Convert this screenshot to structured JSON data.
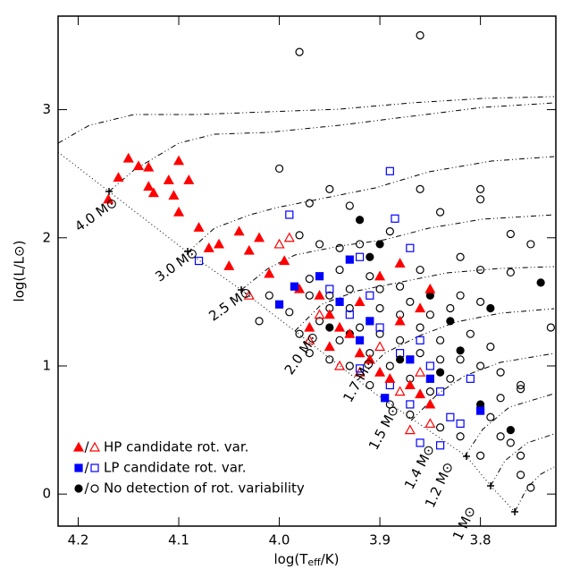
{
  "chart_data": {
    "type": "scatter",
    "xlabel": {
      "prefix": "log(T",
      "sub": "eff",
      "suffix": "/K)"
    },
    "ylabel": "log(L/L⊙)",
    "xlim": [
      4.22,
      3.725
    ],
    "ylim": [
      -0.25,
      3.73
    ],
    "xticks": [
      4.2,
      4.1,
      {
        "value": 4,
        "label": "4.0"
      },
      3.9,
      3.8
    ],
    "yticks": [
      0,
      1,
      2,
      3
    ],
    "legend_position": "lower left",
    "legend_separator": "/",
    "mass_labels": [
      "4.0 M⊙",
      "3.0 M⊙",
      "2.5 M⊙",
      "2.0 M⊙",
      "1.7 M⊙",
      "1.5 M⊙",
      "1.4 M⊙",
      "1.2 M⊙",
      "1 M⊙"
    ],
    "series": [
      {
        "name": "HP candidate rot. var.",
        "color": "#ff0000",
        "marker": "triangle",
        "filled": {
          "x": [
            4.17,
            4.16,
            4.15,
            4.14,
            4.13,
            4.125,
            4.13,
            4.11,
            4.105,
            4.1,
            4.09,
            4.1,
            4.08,
            4.07,
            4.06,
            4.04,
            4.05,
            4.03,
            4.02,
            4.01,
            3.995,
            3.98,
            3.96,
            3.95,
            3.94,
            3.93,
            3.92,
            3.91,
            3.9,
            3.89,
            3.88,
            3.87,
            3.86,
            3.85,
            3.92,
            3.9,
            3.88,
            3.85,
            3.95,
            3.97,
            3.86
          ],
          "y": [
            2.3,
            2.47,
            2.62,
            2.56,
            2.4,
            2.35,
            2.55,
            2.45,
            2.33,
            2.6,
            2.45,
            2.2,
            2.08,
            1.92,
            1.95,
            2.05,
            1.78,
            1.9,
            2.0,
            1.72,
            1.82,
            1.6,
            1.55,
            1.4,
            1.3,
            1.25,
            1.1,
            1.05,
            0.95,
            0.9,
            1.35,
            0.85,
            0.78,
            0.7,
            1.5,
            1.7,
            1.8,
            1.6,
            1.15,
            1.3,
            1.45
          ]
        },
        "open": {
          "x": [
            4.03,
            4.0,
            3.99,
            3.97,
            3.94,
            3.92,
            3.9,
            3.88,
            3.86,
            3.85,
            3.87,
            3.96
          ],
          "y": [
            1.55,
            1.95,
            2.0,
            1.2,
            1.0,
            0.95,
            1.15,
            0.8,
            0.95,
            0.55,
            0.5,
            1.4
          ]
        }
      },
      {
        "name": "LP candidate rot. var.",
        "color": "#0000ff",
        "marker": "square",
        "filled": {
          "x": [
            4.0,
            3.985,
            3.96,
            3.94,
            3.92,
            3.91,
            3.895,
            3.87,
            3.85,
            3.8,
            3.93
          ],
          "y": [
            1.48,
            1.62,
            1.7,
            1.5,
            1.2,
            1.35,
            0.75,
            1.05,
            0.9,
            0.65,
            1.83
          ]
        },
        "open": {
          "x": [
            4.08,
            3.99,
            3.92,
            3.89,
            3.885,
            3.87,
            3.95,
            3.93,
            3.91,
            3.9,
            3.88,
            3.86,
            3.85,
            3.84,
            3.83,
            3.82,
            3.86,
            3.84,
            3.81,
            3.87,
            3.89,
            3.92
          ],
          "y": [
            1.82,
            2.18,
            1.85,
            2.52,
            2.15,
            1.92,
            1.6,
            1.4,
            1.55,
            1.3,
            1.1,
            1.2,
            1.0,
            0.8,
            0.6,
            0.55,
            0.4,
            0.38,
            0.9,
            0.7,
            0.85,
            0.98
          ]
        }
      },
      {
        "name": "No detection of rot. variability",
        "color": "#000000",
        "marker": "circle",
        "filled": {
          "x": [
            3.92,
            3.9,
            3.91,
            3.85,
            3.83,
            3.79,
            3.74,
            3.82,
            3.95,
            3.88,
            3.84,
            3.8,
            3.77,
            3.93
          ],
          "y": [
            2.14,
            1.95,
            1.85,
            1.55,
            1.35,
            1.45,
            1.65,
            1.12,
            1.3,
            1.05,
            0.95,
            0.7,
            0.5,
            1.25
          ]
        },
        "open": {
          "x": [
            3.98,
            3.86,
            4.0,
            3.95,
            3.86,
            3.8,
            3.8,
            3.97,
            3.93,
            3.84,
            3.89,
            3.77,
            3.75,
            3.96,
            3.94,
            3.98,
            3.92,
            3.82,
            3.8,
            3.77,
            3.73,
            3.8,
            3.82,
            3.86,
            3.88,
            3.91,
            3.94,
            3.97,
            4.01,
            4.02,
            3.99,
            3.97,
            3.95,
            3.93,
            3.9,
            3.88,
            3.86,
            3.84,
            3.82,
            3.8,
            3.78,
            3.76,
            3.78,
            3.79,
            3.78,
            3.76,
            3.77,
            3.8,
            3.82,
            3.84,
            3.87,
            3.89,
            3.91,
            3.93,
            3.95,
            3.97,
            3.98,
            3.96,
            3.94,
            3.92,
            3.9,
            3.88,
            3.86,
            3.84,
            3.83,
            3.85,
            3.87,
            3.89,
            3.91,
            3.93,
            3.95,
            3.9,
            3.87,
            3.85,
            3.83,
            3.81,
            3.79,
            3.75,
            3.76,
            3.76
          ],
          "y": [
            3.45,
            3.58,
            2.54,
            2.38,
            2.38,
            2.38,
            2.3,
            2.27,
            2.25,
            2.2,
            2.05,
            2.03,
            1.95,
            1.95,
            1.92,
            2.02,
            1.95,
            1.85,
            1.75,
            1.73,
            1.3,
            1.5,
            1.55,
            1.75,
            1.62,
            1.7,
            1.75,
            1.68,
            1.55,
            1.35,
            1.42,
            1.55,
            1.45,
            1.6,
            1.45,
            1.4,
            1.3,
            1.2,
            1.05,
            1.0,
            0.95,
            0.85,
            0.75,
            0.6,
            0.45,
            0.3,
            0.4,
            0.3,
            0.45,
            0.52,
            0.62,
            0.7,
            0.85,
            1.0,
            1.05,
            1.1,
            1.25,
            1.35,
            1.2,
            1.3,
            1.25,
            1.2,
            1.1,
            1.05,
            0.9,
            0.8,
            0.9,
            1.0,
            1.1,
            1.45,
            1.55,
            1.6,
            1.5,
            1.4,
            1.45,
            1.25,
            1.15,
            0.05,
            0.15,
            0.82
          ]
        }
      }
    ]
  }
}
